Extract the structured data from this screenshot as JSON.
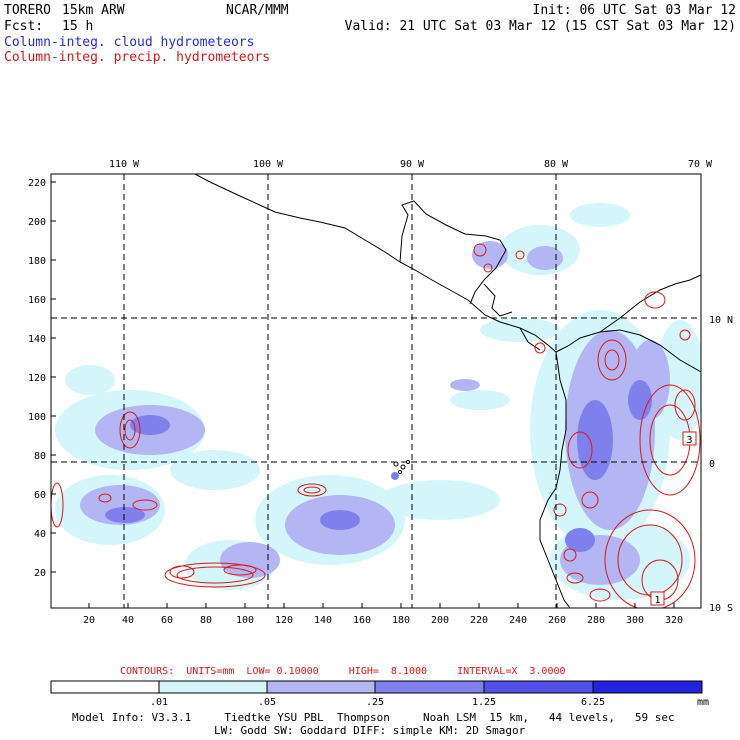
{
  "header": {
    "model_name": "TORERO",
    "resolution": "15km ARW",
    "org": "NCAR/MMM",
    "init": "Init: 06 UTC Sat 03 Mar 12",
    "fcst_label": "Fcst:",
    "fcst_value": "15 h",
    "valid": "Valid: 21 UTC Sat 03 Mar 12 (15 CST Sat 03 Mar 12)",
    "legend_cloud": "Column-integ. cloud hydrometeors",
    "legend_precip": "Column-integ. precip. hydrometeors"
  },
  "colors": {
    "cloud_text": "#2a2ad8",
    "precip_text": "#d81818",
    "contour": "#d81818",
    "coast": "#000000"
  },
  "map": {
    "top_lon_labels": [
      "110 W",
      "100 W",
      "90 W",
      "80 W",
      "70 W"
    ],
    "right_lat_labels": [
      "10 N",
      "0",
      "10 S"
    ],
    "y_ticks": [
      "220",
      "200",
      "180",
      "160",
      "140",
      "120",
      "100",
      "80",
      "60",
      "40",
      "20"
    ],
    "x_ticks": [
      "20",
      "40",
      "60",
      "80",
      "100",
      "120",
      "140",
      "160",
      "180",
      "200",
      "220",
      "240",
      "260",
      "280",
      "300",
      "320"
    ],
    "highs": [
      "3",
      "1"
    ]
  },
  "contour_info": {
    "text": "CONTOURS:  UNITS=mm  LOW= 0.10000     HIGH=  8.1000     INTERVAL=X  3.0000"
  },
  "colorbar": {
    "labels": [
      ".01",
      ".05",
      ".25",
      "1.25",
      "6.25"
    ],
    "unit": "mm",
    "fills": [
      "#ffffff",
      "#d4f6fb",
      "#b3b6f2",
      "#8080ec",
      "#5252e8",
      "#2222e0"
    ]
  },
  "footer": {
    "line1": "Model Info: V3.3.1     Tiedtke YSU PBL  Thompson     Noah LSM  15 km,   44 levels,   59 sec",
    "line2": "LW: Godd SW: Goddard DIFF: simple KM: 2D Smagor"
  }
}
